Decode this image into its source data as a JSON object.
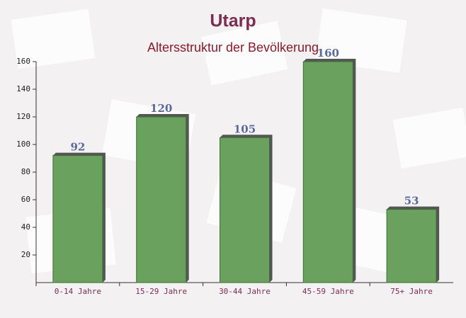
{
  "chart_data": {
    "type": "bar",
    "title": "Utarp",
    "subtitle": "Altersstruktur der Bevölkerung",
    "categories": [
      "0-14 Jahre",
      "15-29 Jahre",
      "30-44 Jahre",
      "45-59 Jahre",
      "75+ Jahre"
    ],
    "values": [
      92,
      120,
      105,
      160,
      53
    ],
    "color": "#6aa15f",
    "ylim": [
      0,
      160
    ],
    "yticks": [
      20,
      40,
      60,
      80,
      100,
      120,
      140,
      160
    ],
    "grid": false
  }
}
